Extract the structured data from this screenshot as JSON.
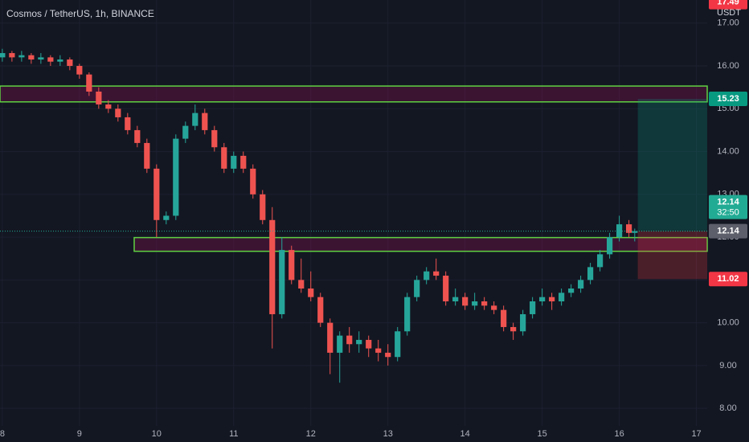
{
  "chart_data": {
    "type": "candlestick",
    "title": "Cosmos / TetherUS, 1h, BINANCE",
    "currency": "USDT",
    "countdown": "32:50",
    "background": "#131722",
    "up_color": "#26a69a",
    "down_color": "#ef5350",
    "grid": true,
    "xlim": [
      7.97,
      17.14
    ],
    "xticks": [
      8,
      9,
      10,
      11,
      12,
      13,
      14,
      15,
      16,
      17
    ],
    "ylim": [
      7.59,
      17.54
    ],
    "yticks": [
      {
        "value": 8,
        "label": "8.00"
      },
      {
        "value": 9,
        "label": "9.00"
      },
      {
        "value": 10,
        "label": "10.00"
      },
      {
        "value": 11,
        "label": "11.00"
      },
      {
        "value": 12,
        "label": "12.00"
      },
      {
        "value": 13,
        "label": "13.00"
      },
      {
        "value": 14,
        "label": "14.00"
      },
      {
        "value": 15,
        "label": "15.00"
      },
      {
        "value": 16,
        "label": "16.00"
      },
      {
        "value": 17,
        "label": "17.00"
      }
    ],
    "x": [
      8,
      8.125,
      8.25,
      8.375,
      8.5,
      8.625,
      8.75,
      8.875,
      9,
      9.125,
      9.25,
      9.375,
      9.5,
      9.625,
      9.75,
      9.875,
      10,
      10.125,
      10.25,
      10.375,
      10.5,
      10.625,
      10.75,
      10.875,
      11,
      11.125,
      11.25,
      11.375,
      11.5,
      11.625,
      11.75,
      11.875,
      12,
      12.125,
      12.25,
      12.375,
      12.5,
      12.625,
      12.75,
      12.875,
      13,
      13.125,
      13.25,
      13.375,
      13.5,
      13.625,
      13.75,
      13.875,
      14,
      14.125,
      14.25,
      14.375,
      14.5,
      14.625,
      14.75,
      14.875,
      15,
      15.125,
      15.25,
      15.375,
      15.5,
      15.625,
      15.75,
      15.875,
      16,
      16.125,
      16.2
    ],
    "candles": [
      [
        16.2,
        16.4,
        16.1,
        16.3
      ],
      [
        16.3,
        16.35,
        16.1,
        16.2
      ],
      [
        16.2,
        16.35,
        16.1,
        16.25
      ],
      [
        16.25,
        16.3,
        16.05,
        16.15
      ],
      [
        16.15,
        16.3,
        16.05,
        16.2
      ],
      [
        16.2,
        16.25,
        16.0,
        16.1
      ],
      [
        16.1,
        16.25,
        16.0,
        16.15
      ],
      [
        16.15,
        16.2,
        15.9,
        16.0
      ],
      [
        16.0,
        16.05,
        15.7,
        15.8
      ],
      [
        15.8,
        15.85,
        15.3,
        15.4
      ],
      [
        15.4,
        15.5,
        15.0,
        15.1
      ],
      [
        15.1,
        15.2,
        14.9,
        15.0
      ],
      [
        15.0,
        15.1,
        14.7,
        14.8
      ],
      [
        14.8,
        14.9,
        14.4,
        14.5
      ],
      [
        14.5,
        14.6,
        14.1,
        14.2
      ],
      [
        14.2,
        14.3,
        13.5,
        13.6
      ],
      [
        13.6,
        13.7,
        12.0,
        12.4
      ],
      [
        12.4,
        12.6,
        12.3,
        12.5
      ],
      [
        12.5,
        14.4,
        12.4,
        14.3
      ],
      [
        14.3,
        14.7,
        14.2,
        14.6
      ],
      [
        14.6,
        15.1,
        14.5,
        14.9
      ],
      [
        14.9,
        15.0,
        14.4,
        14.5
      ],
      [
        14.5,
        14.6,
        14.0,
        14.1
      ],
      [
        14.1,
        14.2,
        13.5,
        13.6
      ],
      [
        13.6,
        14.0,
        13.5,
        13.9
      ],
      [
        13.9,
        14.0,
        13.5,
        13.6
      ],
      [
        13.6,
        13.7,
        12.9,
        13.0
      ],
      [
        13.0,
        13.1,
        12.3,
        12.4
      ],
      [
        12.4,
        12.7,
        9.4,
        10.2
      ],
      [
        10.2,
        12.0,
        10.1,
        11.7
      ],
      [
        11.7,
        11.8,
        10.9,
        11.0
      ],
      [
        11.0,
        11.5,
        10.7,
        10.8
      ],
      [
        10.8,
        11.2,
        10.5,
        10.6
      ],
      [
        10.6,
        10.7,
        9.9,
        10.0
      ],
      [
        10.0,
        10.1,
        8.8,
        9.3
      ],
      [
        9.3,
        9.8,
        8.6,
        9.7
      ],
      [
        9.7,
        9.9,
        9.3,
        9.5
      ],
      [
        9.5,
        9.8,
        9.3,
        9.6
      ],
      [
        9.6,
        9.7,
        9.2,
        9.4
      ],
      [
        9.4,
        9.6,
        9.1,
        9.3
      ],
      [
        9.3,
        9.5,
        9.0,
        9.2
      ],
      [
        9.2,
        9.9,
        9.1,
        9.8
      ],
      [
        9.8,
        10.7,
        9.7,
        10.6
      ],
      [
        10.6,
        11.1,
        10.5,
        11.0
      ],
      [
        11.0,
        11.3,
        10.9,
        11.2
      ],
      [
        11.2,
        11.5,
        11.0,
        11.1
      ],
      [
        11.1,
        11.2,
        10.4,
        10.5
      ],
      [
        10.5,
        10.8,
        10.4,
        10.6
      ],
      [
        10.6,
        10.7,
        10.3,
        10.4
      ],
      [
        10.4,
        10.7,
        10.3,
        10.5
      ],
      [
        10.5,
        10.6,
        10.3,
        10.4
      ],
      [
        10.4,
        10.5,
        10.2,
        10.3
      ],
      [
        10.3,
        10.4,
        9.8,
        9.9
      ],
      [
        9.9,
        10.0,
        9.6,
        9.8
      ],
      [
        9.8,
        10.3,
        9.7,
        10.2
      ],
      [
        10.2,
        10.6,
        10.1,
        10.5
      ],
      [
        10.5,
        10.8,
        10.4,
        10.6
      ],
      [
        10.6,
        10.7,
        10.3,
        10.5
      ],
      [
        10.5,
        10.8,
        10.4,
        10.7
      ],
      [
        10.7,
        10.9,
        10.6,
        10.8
      ],
      [
        10.8,
        11.1,
        10.7,
        11.0
      ],
      [
        11.0,
        11.4,
        10.9,
        11.3
      ],
      [
        11.3,
        11.7,
        11.2,
        11.6
      ],
      [
        11.6,
        12.1,
        11.5,
        12.0
      ],
      [
        12.0,
        12.5,
        11.9,
        12.3
      ],
      [
        12.3,
        12.4,
        12.0,
        12.1
      ],
      [
        12.1,
        12.2,
        11.9,
        12.14
      ]
    ],
    "zones": [
      {
        "top": 15.53,
        "bottom": 15.16
      },
      {
        "top": 11.99,
        "bottom": 11.67,
        "start": 9.71
      }
    ],
    "position": {
      "start": 16.24,
      "target": 15.23,
      "entry": 12.14,
      "stop": 11.02
    },
    "price_labels": [
      {
        "value": 17.49,
        "label": "17.49",
        "color": "#f23645"
      },
      {
        "value": 15.23,
        "label": "15.23",
        "color": "#089981"
      },
      {
        "value": 12.14,
        "label": "12.14",
        "color": "#22ab94"
      },
      {
        "value": 12.14,
        "label": "12.14",
        "color": "#5d606b"
      },
      {
        "value": 11.02,
        "label": "11.02",
        "color": "#f23645"
      }
    ]
  }
}
